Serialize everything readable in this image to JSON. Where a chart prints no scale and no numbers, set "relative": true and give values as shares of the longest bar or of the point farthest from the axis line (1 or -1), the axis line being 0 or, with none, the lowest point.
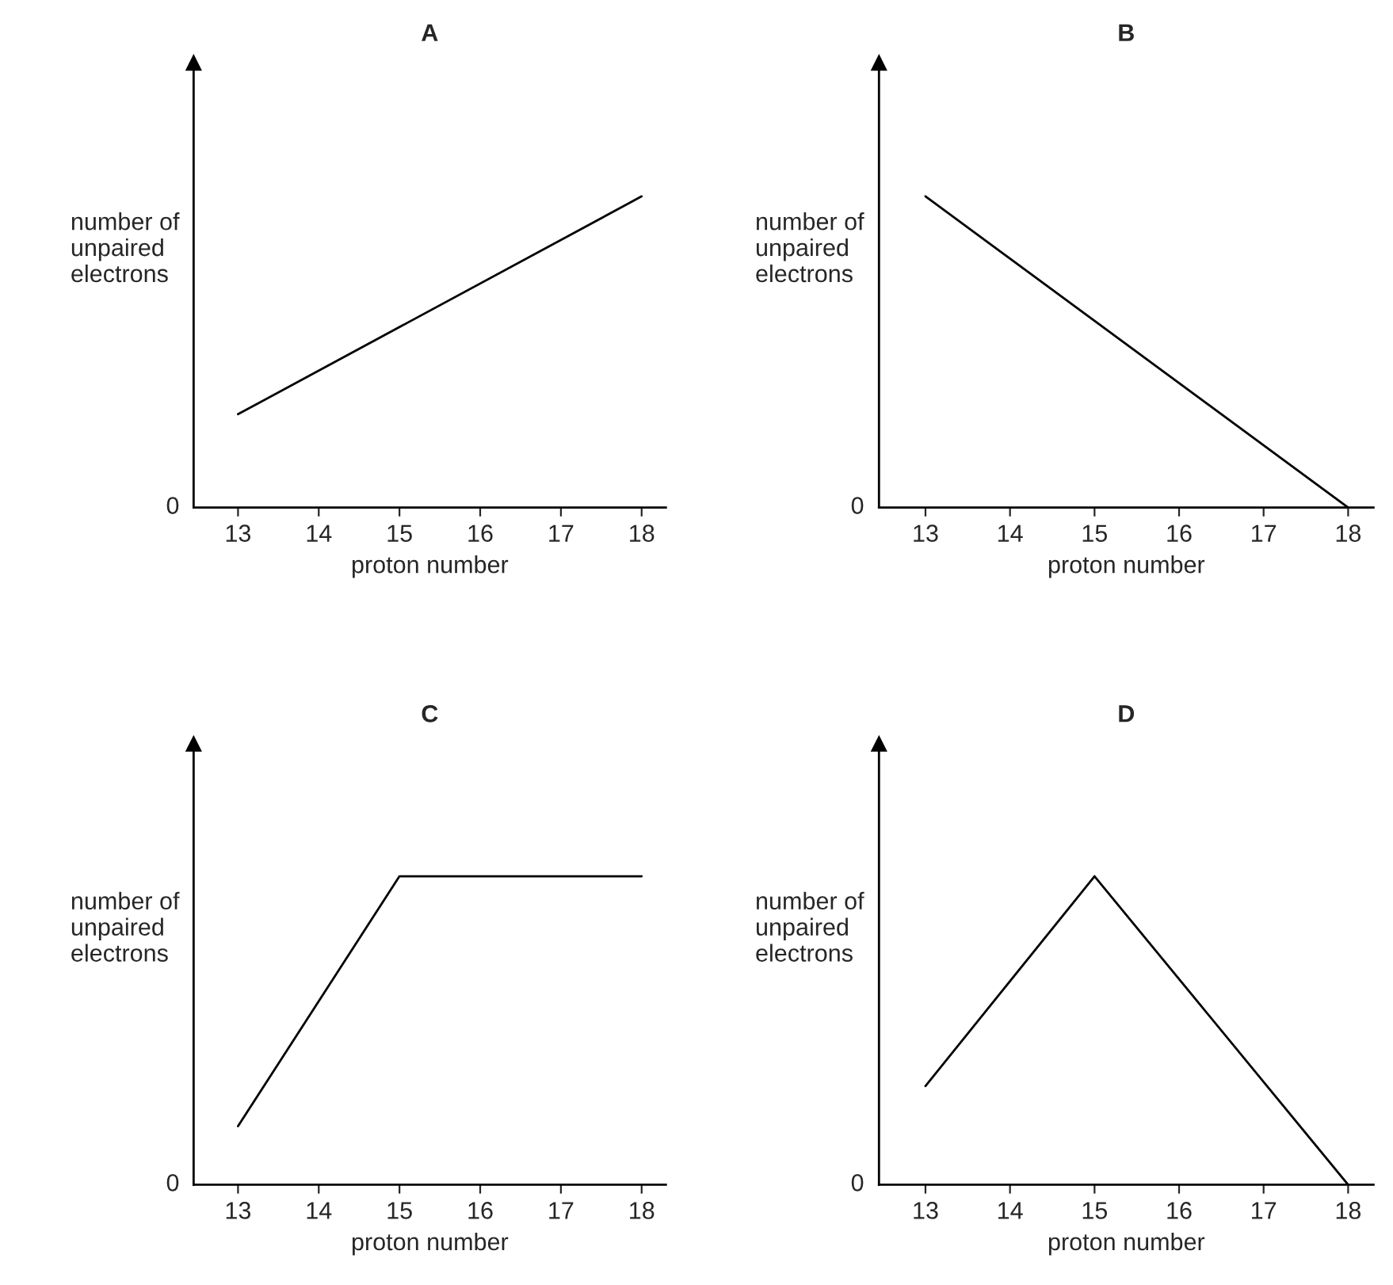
{
  "chart_data": [
    {
      "type": "line",
      "title": "A",
      "xlabel": "proton number",
      "ylabel": "number of\nunpaired\nelectrons",
      "relative": true,
      "tick_labels": "x",
      "line_style": "solid",
      "annotations": [
        "0"
      ],
      "xlim": [
        12.45,
        18.3
      ],
      "xticks": [
        13,
        14,
        15,
        16,
        17,
        18
      ],
      "series": [
        {
          "color": "#000000",
          "x": [
            13,
            18
          ],
          "values": [
            0.3,
            1
          ]
        }
      ]
    },
    {
      "type": "line",
      "title": "B",
      "xlabel": "proton number",
      "ylabel": "number of\nunpaired\nelectrons",
      "relative": true,
      "tick_labels": "x",
      "line_style": "solid",
      "annotations": [
        "0"
      ],
      "xlim": [
        12.45,
        18.3
      ],
      "xticks": [
        13,
        14,
        15,
        16,
        17,
        18
      ],
      "series": [
        {
          "color": "#000000",
          "x": [
            13,
            18
          ],
          "values": [
            1,
            0
          ]
        }
      ]
    },
    {
      "type": "line",
      "title": "C",
      "xlabel": "proton number",
      "ylabel": "number of\nunpaired\nelectrons",
      "relative": true,
      "tick_labels": "x",
      "line_style": "solid",
      "annotations": [
        "0"
      ],
      "xlim": [
        12.45,
        18.3
      ],
      "xticks": [
        13,
        14,
        15,
        16,
        17,
        18
      ],
      "series": [
        {
          "color": "#000000",
          "x": [
            13,
            15,
            18
          ],
          "values": [
            0.19,
            1,
            1
          ]
        }
      ]
    },
    {
      "type": "line",
      "title": "D",
      "xlabel": "proton number",
      "ylabel": "number of\nunpaired\nelectrons",
      "relative": true,
      "tick_labels": "x",
      "line_style": "solid",
      "annotations": [
        "0"
      ],
      "xlim": [
        12.45,
        18.3
      ],
      "xticks": [
        13,
        14,
        15,
        16,
        17,
        18
      ],
      "series": [
        {
          "color": "#000000",
          "x": [
            13,
            15,
            18
          ],
          "values": [
            0.32,
            1,
            0
          ]
        }
      ]
    }
  ]
}
